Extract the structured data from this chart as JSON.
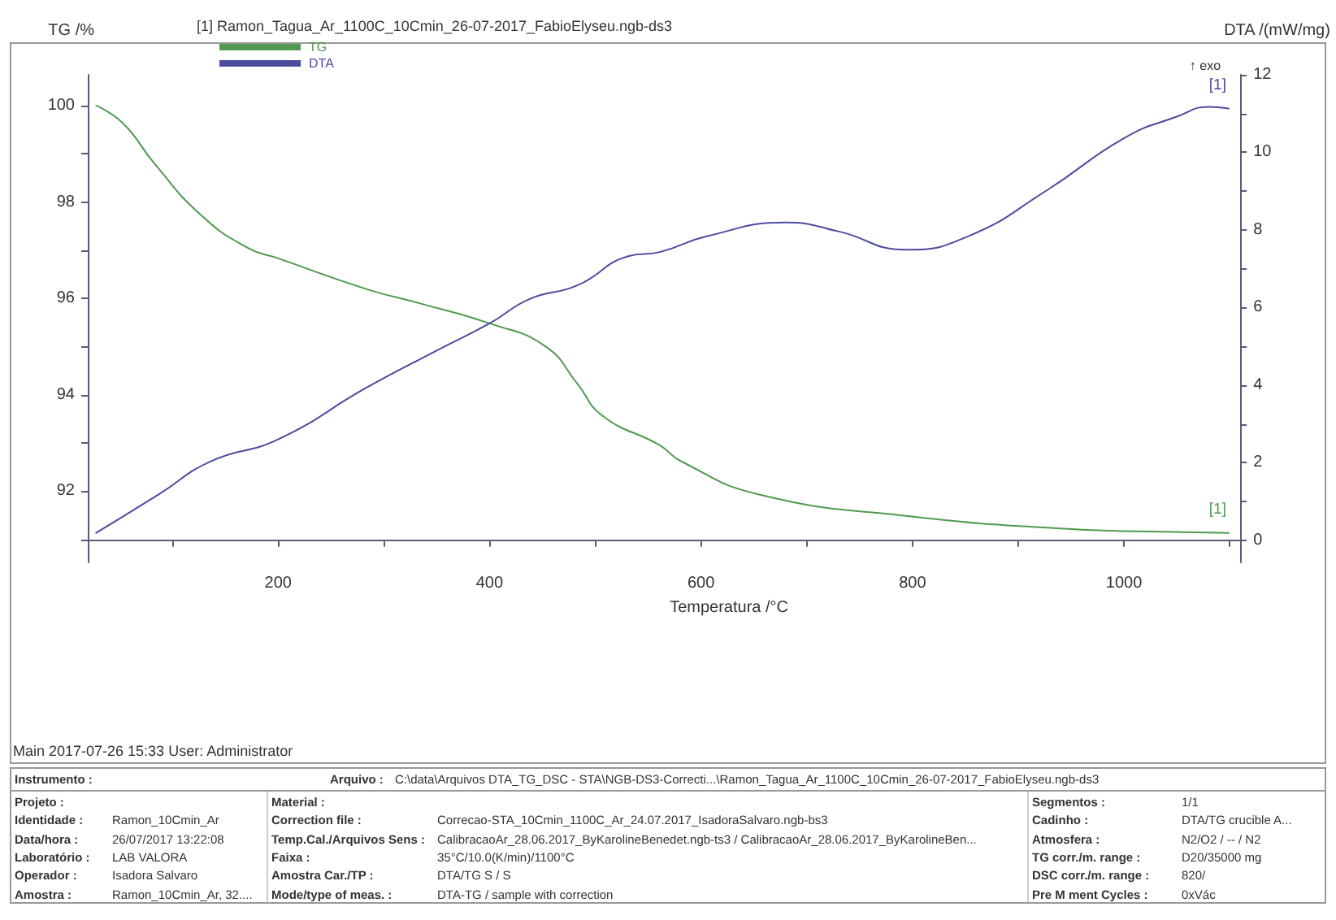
{
  "chart_data": {
    "type": "line",
    "legend_title": "[1] Ramon_Tagua_Ar_1100C_10Cmin_26-07-2017_FabioElyseu.ngb-ds3",
    "xlabel": "Temperatura /°C",
    "ylabel": "TG /%",
    "y2label": "DTA /(mW/mg)",
    "xlim": [
      20,
      1110
    ],
    "ylim": [
      90.52,
      100.64
    ],
    "y2lim": [
      -0.57,
      12
    ],
    "xticks": [
      {
        "value": 100,
        "label": null
      },
      200,
      {
        "value": 300,
        "label": null
      },
      400,
      {
        "value": 500,
        "label": null
      },
      600,
      {
        "value": 700,
        "label": null
      },
      800,
      {
        "value": 900,
        "label": null
      },
      1000,
      {
        "value": 1100,
        "label": null
      }
    ],
    "yticks": [
      {
        "value": 91,
        "label": null
      },
      92,
      {
        "value": 93,
        "label": null
      },
      94,
      {
        "value": 95,
        "label": null
      },
      96,
      {
        "value": 97,
        "label": null
      },
      98,
      {
        "value": 99,
        "label": null
      },
      100
    ],
    "y2ticks": [
      0,
      {
        "value": 1,
        "label": null
      },
      2,
      {
        "value": 3,
        "label": null
      },
      4,
      {
        "value": 5,
        "label": null
      },
      6,
      {
        "value": 7,
        "label": null
      },
      8,
      {
        "value": 9,
        "label": null
      },
      10,
      {
        "value": 11,
        "label": null
      },
      12
    ],
    "grid": false,
    "legend": "top left",
    "marker": "none",
    "line_style": "solid",
    "series": [
      {
        "name": "TG",
        "color": "#4f9a4f",
        "x": [
          28,
          53,
          83,
          127,
          172,
          200,
          284,
          335,
          400,
          453,
          483,
          507,
          561,
          581,
          655,
          801,
          951,
          1025,
          1099
        ],
        "values": [
          100,
          99.64,
          98.8,
          97.73,
          97.04,
          96.83,
          96.19,
          95.89,
          95.48,
          95.0,
          94.23,
          93.56,
          92.95,
          92.62,
          91.93,
          91.47,
          91.21,
          91.16,
          91.13
        ]
      },
      {
        "name": "DTA",
        "color": "#4b4ba0",
        "axis": "y2",
        "x": [
          28,
          87,
          136,
          200,
          284,
          350,
          400,
          438,
          483,
          532,
          561,
          606,
          680,
          729,
          794,
          853,
          927,
          1001,
          1050,
          1080,
          1099
        ],
        "values": [
          0.19,
          1.18,
          2.03,
          2.6,
          3.94,
          4.89,
          5.59,
          6.22,
          6.57,
          7.33,
          7.43,
          7.84,
          8.19,
          7.97,
          7.49,
          7.84,
          9.02,
          10.38,
          10.92,
          11.17,
          11.13
        ]
      }
    ],
    "annotations": [
      "↑ exo",
      "[1]",
      "[1]",
      "Main   2017-07-26 15:33   User: Administrator",
      "Instrumento :",
      "Arquivo :",
      "C:\\data\\Arquivos DTA_TG_DSC - STA\\NGB-DS3-Correcti...\\Ramon_Tagua_Ar_1100C_10Cmin_26-07-2017_FabioElyseu.ngb-ds3",
      "Projeto :",
      "Material :",
      "Segmentos :",
      "1/1",
      "Identidade :",
      "Ramon_10Cmin_Ar",
      "Correction file :",
      "Correcao-STA_10Cmin_1100C_Ar_24.07.2017_IsadoraSalvaro.ngb-bs3",
      "Cadinho :",
      "DTA/TG crucible A...",
      "Data/hora :",
      "26/07/2017 13:22:08",
      "Temp.Cal./Arquivos Sens :",
      "CalibracaoAr_28.06.2017_ByKarolineBenedet.ngb-ts3 / CalibracaoAr_28.06.2017_ByKarolineBen...",
      "Atmosfera :",
      "N2/O2 / -- / N2",
      "Laboratório :",
      "LAB VALORA",
      "Faixa :",
      "35°C/10.0(K/min)/1100°C",
      "TG corr./m. range :",
      "D20/35000 mg",
      "Operador :",
      "Isadora Salvaro",
      "Amostra Car./TP :",
      "DTA/TG S / S",
      "DSC corr./m. range :",
      "820/",
      "Amostra :",
      "Ramon_10Cmin_Ar, 32....",
      "Mode/type of meas. :",
      "DTA-TG / sample with correction",
      "Pre M ment Cycles :",
      "0xVác"
    ]
  }
}
